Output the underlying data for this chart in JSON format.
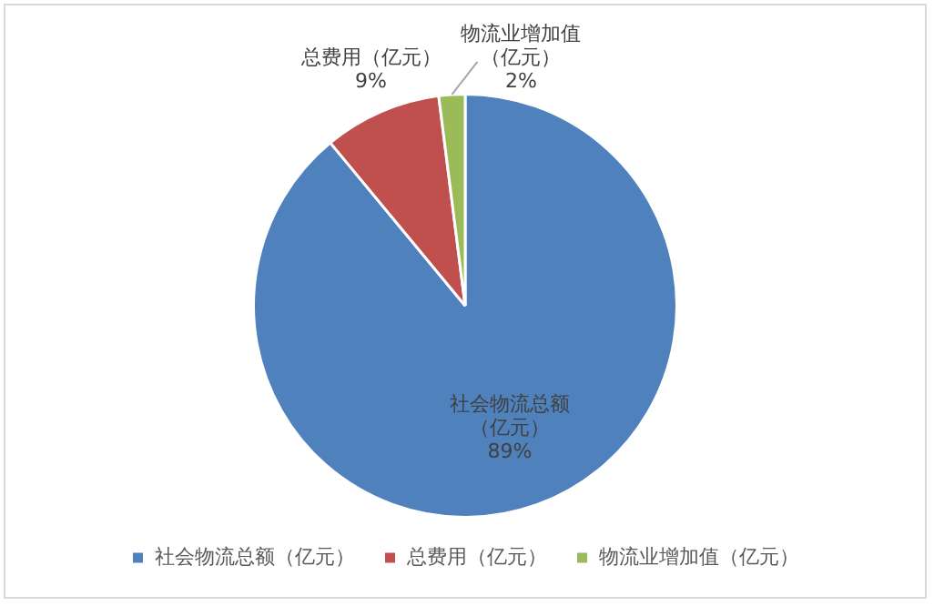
{
  "chart_data": {
    "type": "pie",
    "categories": [
      "社会物流总额（亿元）",
      "总费用（亿元）",
      "物流业增加值（亿元）"
    ],
    "values": [
      89,
      9,
      2
    ],
    "colors": [
      "#4f81bd",
      "#c0504d",
      "#9bbb59"
    ],
    "value_labels": [
      "89%",
      "9%",
      "2%"
    ],
    "legend": "bottom"
  }
}
